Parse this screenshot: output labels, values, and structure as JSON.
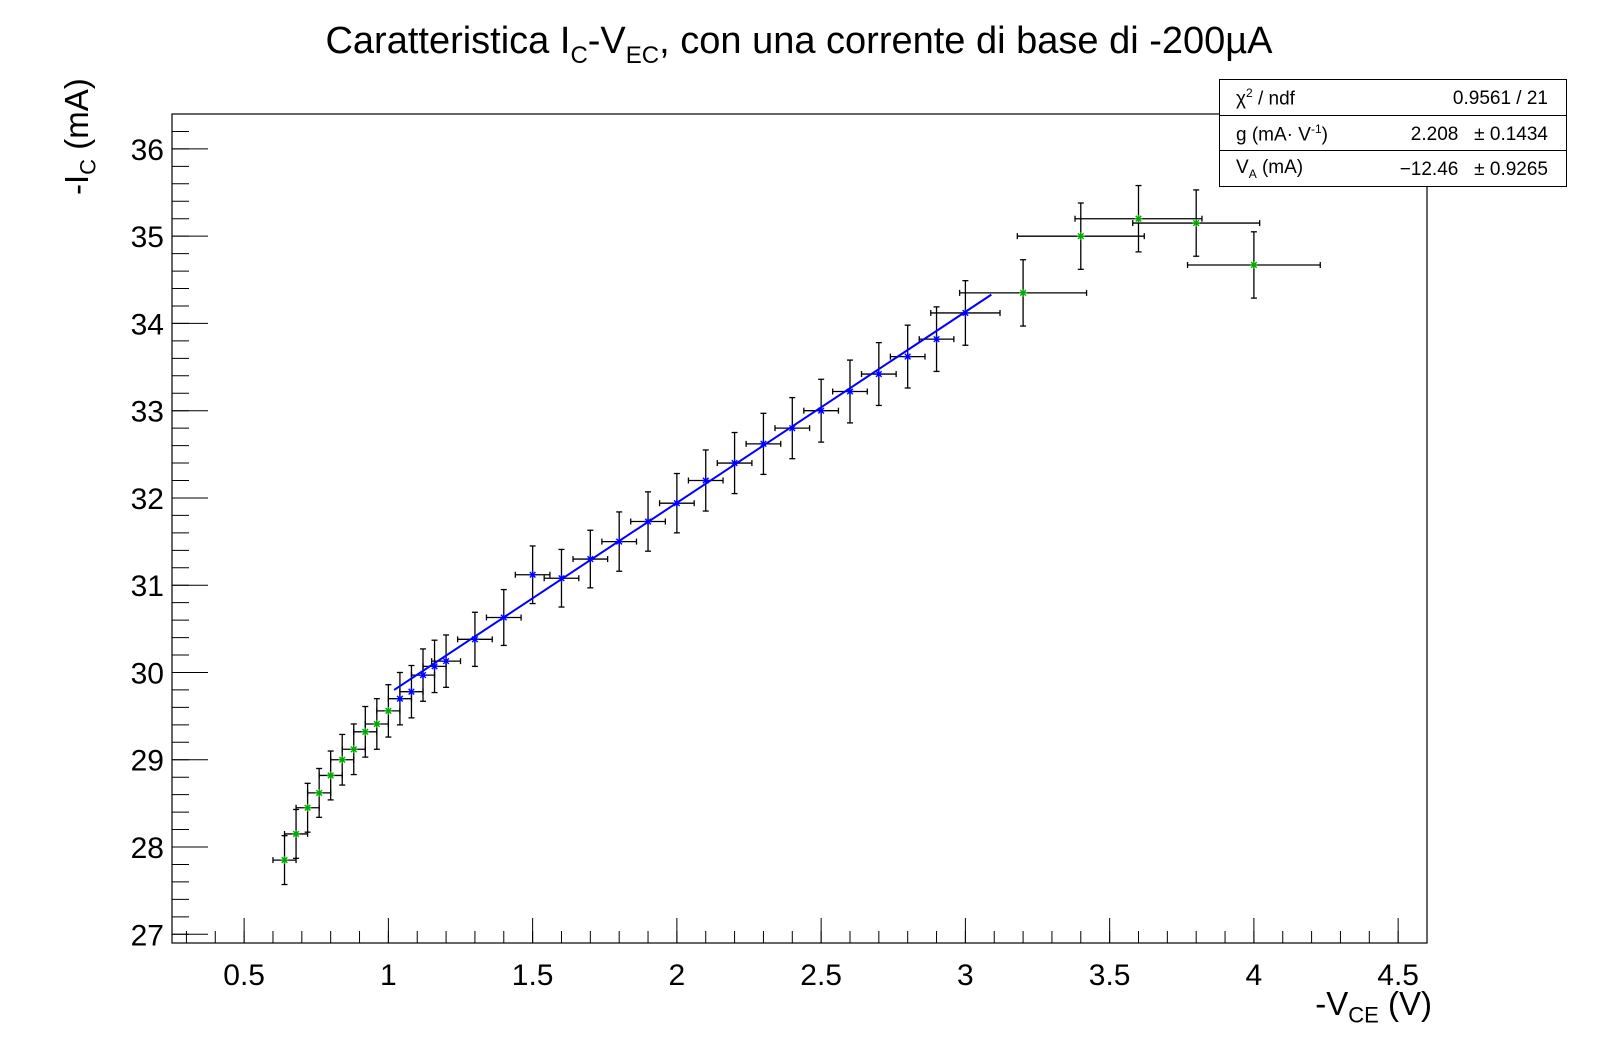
{
  "chart_data": {
    "type": "scatter",
    "title_parts": [
      "Caratteristica I",
      "C",
      "-V",
      "EC",
      ", con una corrente di base di -200µA"
    ],
    "xlabel_parts": [
      "-V",
      "CE",
      " (V)"
    ],
    "ylabel_parts": [
      "-I",
      "C",
      " (mA)"
    ],
    "xlim": [
      0.25,
      4.6
    ],
    "ylim": [
      26.9,
      36.4
    ],
    "x_ticks": [
      0.5,
      1,
      1.5,
      2,
      2.5,
      3,
      3.5,
      4,
      4.5
    ],
    "y_ticks": [
      27,
      28,
      29,
      30,
      31,
      32,
      33,
      34,
      35,
      36
    ],
    "x_tick_labels": [
      "0.5",
      "1",
      "1.5",
      "2",
      "2.5",
      "3",
      "3.5",
      "4",
      "4.5"
    ],
    "y_tick_labels": [
      "27",
      "28",
      "29",
      "30",
      "31",
      "32",
      "33",
      "34",
      "35",
      "36"
    ],
    "grid": false,
    "series": [
      {
        "marker_color": "#00aa00",
        "error_color": "#000000",
        "x": [
          0.64,
          0.68,
          0.72,
          0.76,
          0.8,
          0.84,
          0.88,
          0.92,
          0.96,
          1.0
        ],
        "y": [
          27.85,
          28.15,
          28.45,
          28.62,
          28.82,
          29.0,
          29.12,
          29.32,
          29.41,
          29.56
        ],
        "ex": [
          0.04,
          0.04,
          0.04,
          0.04,
          0.04,
          0.04,
          0.04,
          0.04,
          0.04,
          0.04
        ],
        "ey": [
          0.28,
          0.28,
          0.28,
          0.28,
          0.28,
          0.29,
          0.29,
          0.29,
          0.29,
          0.3
        ]
      },
      {
        "marker_color": "#0000ff",
        "error_color": "#000000",
        "x": [
          1.04,
          1.08,
          1.12,
          1.16,
          1.2,
          1.3,
          1.4,
          1.5,
          1.6,
          1.7,
          1.8,
          1.9,
          2.0,
          2.1,
          2.2,
          2.3,
          2.4,
          2.5,
          2.6,
          2.7,
          2.8,
          2.9,
          3.0
        ],
        "y": [
          29.7,
          29.78,
          29.97,
          30.07,
          30.13,
          30.38,
          30.63,
          31.12,
          31.08,
          31.3,
          31.5,
          31.73,
          31.94,
          32.2,
          32.4,
          32.62,
          32.8,
          33.0,
          33.22,
          33.42,
          33.62,
          33.82,
          34.12
        ],
        "ex": [
          0.04,
          0.04,
          0.04,
          0.04,
          0.05,
          0.06,
          0.06,
          0.06,
          0.06,
          0.06,
          0.06,
          0.06,
          0.06,
          0.06,
          0.06,
          0.06,
          0.06,
          0.06,
          0.06,
          0.06,
          0.06,
          0.06,
          0.12
        ],
        "ey": [
          0.3,
          0.3,
          0.3,
          0.3,
          0.3,
          0.31,
          0.32,
          0.33,
          0.33,
          0.33,
          0.34,
          0.34,
          0.34,
          0.35,
          0.35,
          0.35,
          0.35,
          0.36,
          0.36,
          0.36,
          0.36,
          0.37,
          0.37
        ]
      },
      {
        "marker_color": "#00aa00",
        "error_color": "#000000",
        "x": [
          3.2,
          3.4,
          3.6,
          3.8,
          4.0
        ],
        "y": [
          34.35,
          35.0,
          35.2,
          35.15,
          34.67
        ],
        "ex": [
          0.22,
          0.22,
          0.22,
          0.22,
          0.23
        ],
        "ey": [
          0.38,
          0.38,
          0.38,
          0.38,
          0.38
        ]
      }
    ],
    "fit": {
      "type": "line",
      "color": "#0000ff",
      "x": [
        1.02,
        3.09
      ],
      "y": [
        29.8,
        34.33
      ]
    },
    "stats_box": {
      "rows": [
        {
          "label_main": "χ",
          "label_sup": "2",
          "label_rest": " / ndf",
          "value": "0.9561 / 21"
        },
        {
          "label_main": "g (mA· V",
          "label_sup": "-1",
          "label_rest": ")",
          "value": "2.208   ± 0.1434"
        },
        {
          "label_main": "V",
          "label_sub": "A",
          "label_rest": " (mA)",
          "value": "−12.46   ± 0.9265"
        }
      ]
    }
  }
}
